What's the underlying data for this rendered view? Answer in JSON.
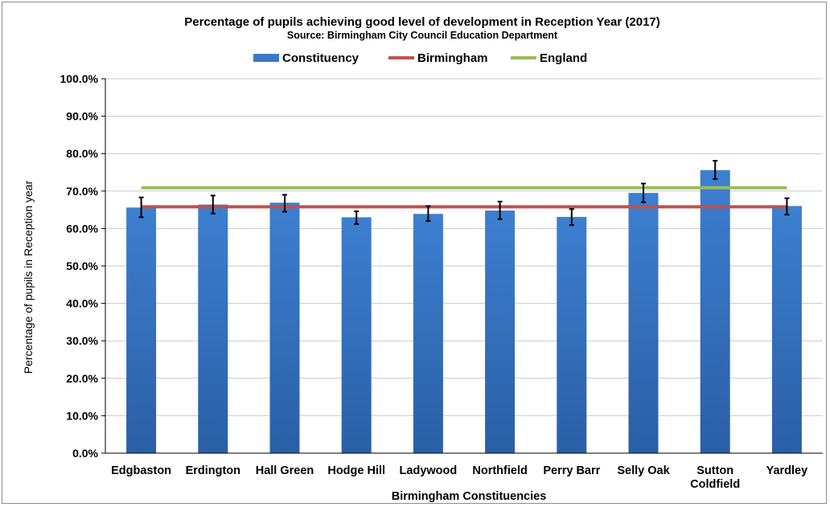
{
  "chart_data": {
    "type": "bar",
    "title": "Percentage of pupils achieving good level of development in Reception Year (2017)",
    "subtitle": "Source: Birmingham City Council Education Department",
    "xlabel": "Birmingham Constituencies",
    "ylabel": "Percentage of pupils in Reception  year",
    "categories": [
      "Edgbaston",
      "Erdington",
      "Hall Green",
      "Hodge Hill",
      "Ladywood",
      "Northfield",
      "Perry Barr",
      "Selly Oak",
      "Sutton Coldfield",
      "Yardley"
    ],
    "series": [
      {
        "name": "Constituency",
        "type": "bar",
        "color": "#3a78c8",
        "values": [
          65.6,
          66.4,
          66.9,
          63.0,
          63.9,
          64.8,
          63.1,
          69.5,
          75.6,
          66.0
        ],
        "error_low": [
          63.0,
          64.0,
          64.5,
          61.2,
          62.0,
          62.5,
          60.9,
          67.0,
          73.2,
          63.7
        ],
        "error_high": [
          68.3,
          68.8,
          69.0,
          64.6,
          66.0,
          67.2,
          65.2,
          72.0,
          78.1,
          68.1
        ]
      },
      {
        "name": "Birmingham",
        "type": "line",
        "color": "#c0504d",
        "value": 65.8
      },
      {
        "name": "England",
        "type": "line",
        "color": "#9bbb59",
        "value": 70.9
      }
    ],
    "ylim": [
      0,
      100
    ],
    "yticks": [
      0,
      10,
      20,
      30,
      40,
      50,
      60,
      70,
      80,
      90,
      100
    ],
    "ytick_labels": [
      "0.0%",
      "10.0%",
      "20.0%",
      "30.0%",
      "40.0%",
      "50.0%",
      "60.0%",
      "70.0%",
      "80.0%",
      "90.0%",
      "100.0%"
    ],
    "grid": true,
    "legend_position": "top"
  }
}
